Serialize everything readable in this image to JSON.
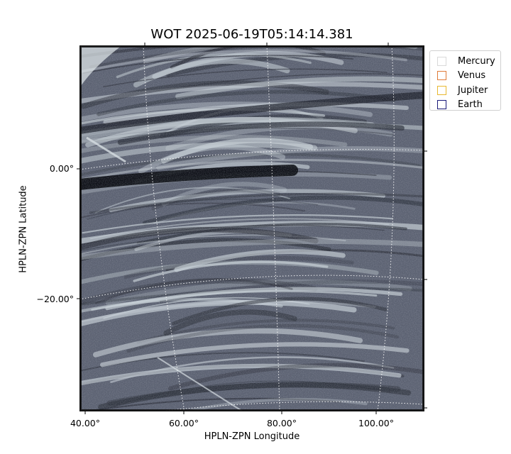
{
  "chart_data": {
    "type": "heatmap",
    "title": "WOT 2025-06-19T05:14:14.381",
    "xlabel": "HPLN-ZPN Longitude",
    "ylabel": "HPLN-ZPN Latitude",
    "xticks": [
      "40.00°",
      "60.00°",
      "80.00°",
      "100.00°"
    ],
    "yticks": [
      "0.00°",
      "−20.00°"
    ],
    "legend": [
      {
        "name": "Mercury",
        "color": "#d9d9d9"
      },
      {
        "name": "Venus",
        "color": "#e07b39"
      },
      {
        "name": "Jupiter",
        "color": "#e8b830"
      },
      {
        "name": "Earth",
        "color": "#1a1a7a"
      }
    ],
    "legend_position": "outside-top-right",
    "colormap": "bone",
    "grid": true
  }
}
